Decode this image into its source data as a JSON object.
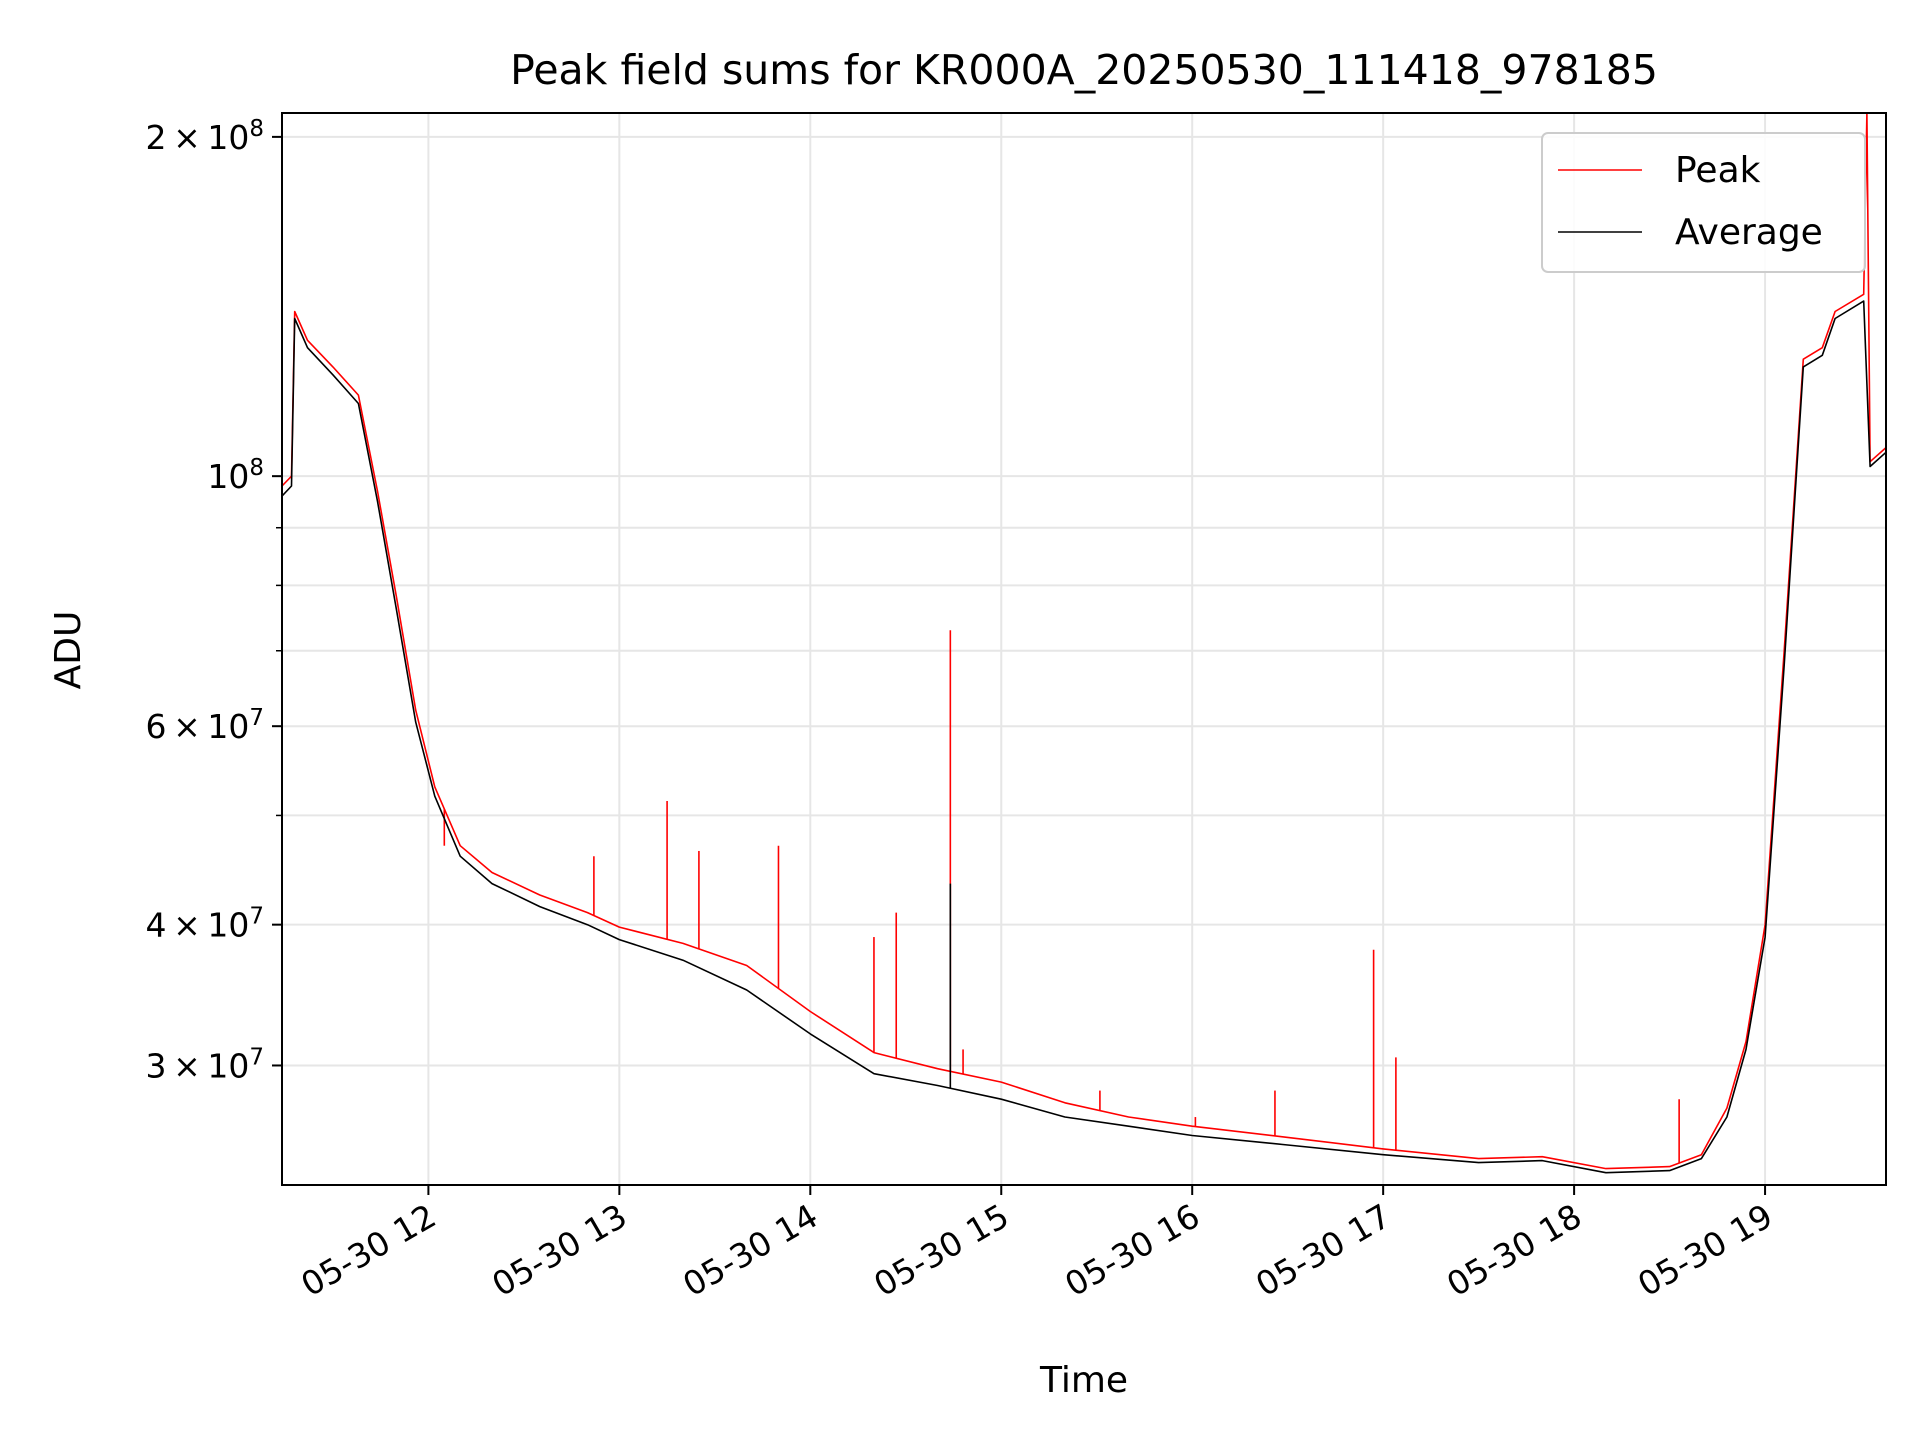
{
  "chart_data": {
    "type": "line",
    "title": "Peak field sums for KR000A_20250530_111418_978185",
    "xlabel": "Time",
    "ylabel": "ADU",
    "y_scale": "log",
    "grid": true,
    "legend_position": "top-right",
    "xlim": [
      "2025-05-30 11:14",
      "2025-05-30 19:38"
    ],
    "ylim": [
      23500000,
      210000000
    ],
    "x_ticks": [
      {
        "x": "2025-05-30 12:00",
        "label": "05-30 12"
      },
      {
        "x": "2025-05-30 13:00",
        "label": "05-30 13"
      },
      {
        "x": "2025-05-30 14:00",
        "label": "05-30 14"
      },
      {
        "x": "2025-05-30 15:00",
        "label": "05-30 15"
      },
      {
        "x": "2025-05-30 16:00",
        "label": "05-30 16"
      },
      {
        "x": "2025-05-30 17:00",
        "label": "05-30 17"
      },
      {
        "x": "2025-05-30 18:00",
        "label": "05-30 18"
      },
      {
        "x": "2025-05-30 19:00",
        "label": "05-30 19"
      }
    ],
    "y_ticks_major": [
      {
        "y": 200000000,
        "mant": "2",
        "exp": "8"
      },
      {
        "y": 100000000,
        "mant": "",
        "exp": "8"
      },
      {
        "y": 60000000,
        "mant": "6",
        "exp": "7"
      },
      {
        "y": 40000000,
        "mant": "4",
        "exp": "7"
      },
      {
        "y": 30000000,
        "mant": "3",
        "exp": "7"
      }
    ],
    "y_ticks_minor": [
      90000000,
      80000000,
      70000000,
      50000000
    ],
    "series": [
      {
        "name": "Peak",
        "color": "#ff0000",
        "points": [
          [
            "2025-05-30 11:14",
            98000000
          ],
          [
            "2025-05-30 11:17",
            100000000
          ],
          [
            "2025-05-30 11:18",
            140000000
          ],
          [
            "2025-05-30 11:22",
            132000000
          ],
          [
            "2025-05-30 11:30",
            125000000
          ],
          [
            "2025-05-30 11:38",
            118000000
          ],
          [
            "2025-05-30 11:44",
            97000000
          ],
          [
            "2025-05-30 11:50",
            78000000
          ],
          [
            "2025-05-30 11:56",
            62000000
          ],
          [
            "2025-05-30 12:02",
            53000000
          ],
          [
            "2025-05-30 12:10",
            47000000
          ],
          [
            "2025-05-30 12:20",
            44500000
          ],
          [
            "2025-05-30 12:35",
            42500000
          ],
          [
            "2025-05-30 12:50",
            41000000
          ],
          [
            "2025-05-30 13:00",
            39800000
          ],
          [
            "2025-05-30 13:20",
            38500000
          ],
          [
            "2025-05-30 13:40",
            36800000
          ],
          [
            "2025-05-30 14:00",
            33500000
          ],
          [
            "2025-05-30 14:20",
            30800000
          ],
          [
            "2025-05-30 14:40",
            29800000
          ],
          [
            "2025-05-30 15:00",
            29000000
          ],
          [
            "2025-05-30 15:20",
            27800000
          ],
          [
            "2025-05-30 15:40",
            27000000
          ],
          [
            "2025-05-30 16:00",
            26500000
          ],
          [
            "2025-05-30 16:30",
            25900000
          ],
          [
            "2025-05-30 17:00",
            25300000
          ],
          [
            "2025-05-30 17:30",
            24800000
          ],
          [
            "2025-05-30 17:50",
            24900000
          ],
          [
            "2025-05-30 18:10",
            24300000
          ],
          [
            "2025-05-30 18:30",
            24400000
          ],
          [
            "2025-05-30 18:40",
            25000000
          ],
          [
            "2025-05-30 18:48",
            27500000
          ],
          [
            "2025-05-30 18:54",
            31500000
          ],
          [
            "2025-05-30 19:00",
            40000000
          ],
          [
            "2025-05-30 19:06",
            70000000
          ],
          [
            "2025-05-30 19:12",
            127000000
          ],
          [
            "2025-05-30 19:18",
            130000000
          ],
          [
            "2025-05-30 19:22",
            140000000
          ],
          [
            "2025-05-30 19:31",
            145000000
          ],
          [
            "2025-05-30 19:32",
            210000000
          ],
          [
            "2025-05-30 19:33",
            103000000
          ],
          [
            "2025-05-30 19:38",
            106000000
          ]
        ],
        "spikes": [
          [
            "2025-05-30 12:05",
            47000000
          ],
          [
            "2025-05-30 12:52",
            46000000
          ],
          [
            "2025-05-30 13:15",
            51500000
          ],
          [
            "2025-05-30 13:25",
            46500000
          ],
          [
            "2025-05-30 13:50",
            47000000
          ],
          [
            "2025-05-30 14:20",
            39000000
          ],
          [
            "2025-05-30 14:27",
            41000000
          ],
          [
            "2025-05-30 14:44",
            73000000
          ],
          [
            "2025-05-30 14:48",
            31000000
          ],
          [
            "2025-05-30 15:31",
            28500000
          ],
          [
            "2025-05-30 16:01",
            27000000
          ],
          [
            "2025-05-30 16:26",
            28500000
          ],
          [
            "2025-05-30 16:57",
            38000000
          ],
          [
            "2025-05-30 17:04",
            30500000
          ],
          [
            "2025-05-30 18:33",
            28000000
          ]
        ]
      },
      {
        "name": "Average",
        "color": "#000000",
        "points": [
          [
            "2025-05-30 11:14",
            96000000
          ],
          [
            "2025-05-30 11:17",
            98000000
          ],
          [
            "2025-05-30 11:18",
            138000000
          ],
          [
            "2025-05-30 11:22",
            130000000
          ],
          [
            "2025-05-30 11:30",
            123000000
          ],
          [
            "2025-05-30 11:38",
            116000000
          ],
          [
            "2025-05-30 11:44",
            95000000
          ],
          [
            "2025-05-30 11:50",
            76000000
          ],
          [
            "2025-05-30 11:56",
            60500000
          ],
          [
            "2025-05-30 12:02",
            52000000
          ],
          [
            "2025-05-30 12:10",
            46000000
          ],
          [
            "2025-05-30 12:20",
            43500000
          ],
          [
            "2025-05-30 12:35",
            41500000
          ],
          [
            "2025-05-30 12:50",
            40000000
          ],
          [
            "2025-05-30 13:00",
            38800000
          ],
          [
            "2025-05-30 13:20",
            37200000
          ],
          [
            "2025-05-30 13:40",
            35000000
          ],
          [
            "2025-05-30 14:00",
            32000000
          ],
          [
            "2025-05-30 14:20",
            29500000
          ],
          [
            "2025-05-30 14:40",
            28800000
          ],
          [
            "2025-05-30 15:00",
            28000000
          ],
          [
            "2025-05-30 15:20",
            27000000
          ],
          [
            "2025-05-30 15:40",
            26500000
          ],
          [
            "2025-05-30 16:00",
            26000000
          ],
          [
            "2025-05-30 16:30",
            25500000
          ],
          [
            "2025-05-30 17:00",
            25000000
          ],
          [
            "2025-05-30 17:30",
            24600000
          ],
          [
            "2025-05-30 17:50",
            24700000
          ],
          [
            "2025-05-30 18:10",
            24100000
          ],
          [
            "2025-05-30 18:30",
            24200000
          ],
          [
            "2025-05-30 18:40",
            24800000
          ],
          [
            "2025-05-30 18:48",
            27000000
          ],
          [
            "2025-05-30 18:54",
            31000000
          ],
          [
            "2025-05-30 19:00",
            39000000
          ],
          [
            "2025-05-30 19:06",
            68000000
          ],
          [
            "2025-05-30 19:12",
            125000000
          ],
          [
            "2025-05-30 19:18",
            128000000
          ],
          [
            "2025-05-30 19:22",
            138000000
          ],
          [
            "2025-05-30 19:31",
            143000000
          ],
          [
            "2025-05-30 19:33",
            102000000
          ],
          [
            "2025-05-30 19:38",
            105000000
          ]
        ],
        "spikes": [
          [
            "2025-05-30 14:44",
            43500000
          ]
        ]
      }
    ]
  }
}
